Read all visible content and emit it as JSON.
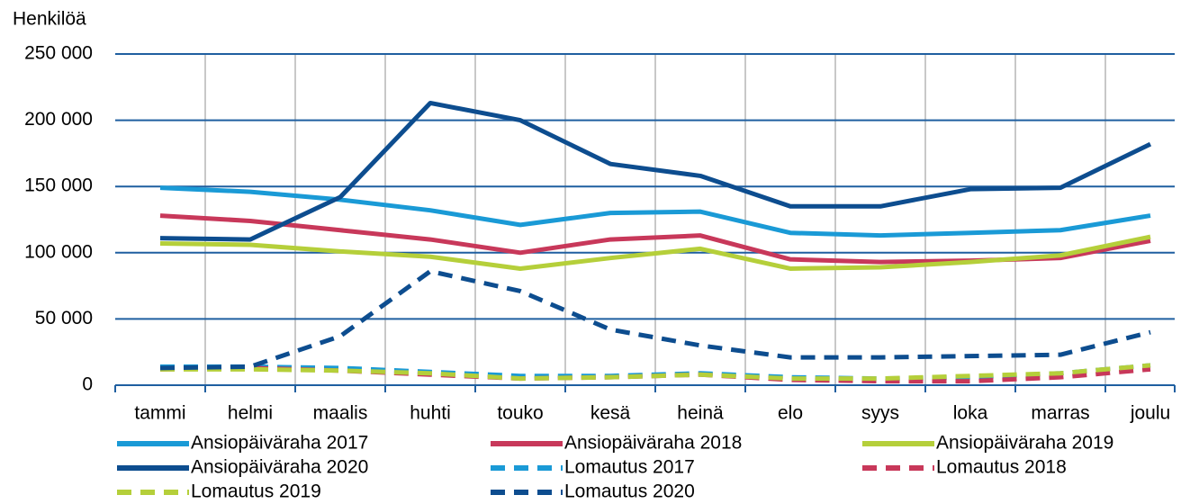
{
  "chart_data": {
    "type": "line",
    "y_label": "Henkilöä",
    "categories": [
      "tammi",
      "helmi",
      "maalis",
      "huhti",
      "touko",
      "kesä",
      "heinä",
      "elo",
      "syys",
      "loka",
      "marras",
      "joulu"
    ],
    "ylim": [
      0,
      250000
    ],
    "yticks": [
      {
        "value": 0,
        "label": "0"
      },
      {
        "value": 50000,
        "label": "50 000"
      },
      {
        "value": 100000,
        "label": "100 000"
      },
      {
        "value": 150000,
        "label": "150 000"
      },
      {
        "value": 200000,
        "label": "200 000"
      },
      {
        "value": 250000,
        "label": "250 000"
      }
    ],
    "grid": true,
    "series": [
      {
        "name": "Ansiopäiväraha 2017",
        "color": "#1a9ad6",
        "dashed": false,
        "values": [
          149000,
          146000,
          140000,
          132000,
          121000,
          130000,
          131000,
          115000,
          113000,
          115000,
          117000,
          128000
        ]
      },
      {
        "name": "Ansiopäiväraha 2018",
        "color": "#c8385a",
        "dashed": false,
        "values": [
          128000,
          124000,
          117000,
          110000,
          100000,
          110000,
          113000,
          95000,
          93000,
          94000,
          96000,
          109000
        ]
      },
      {
        "name": "Ansiopäiväraha 2019",
        "color": "#b5cf3a",
        "dashed": false,
        "values": [
          107000,
          106000,
          101000,
          97000,
          88000,
          96000,
          103000,
          88000,
          89000,
          93000,
          98000,
          112000
        ]
      },
      {
        "name": "Ansiopäiväraha 2020",
        "color": "#0d4d8f",
        "dashed": false,
        "values": [
          111000,
          110000,
          142000,
          213000,
          200000,
          167000,
          158000,
          135000,
          135000,
          148000,
          149000,
          182000
        ]
      },
      {
        "name": "Lomautus 2017",
        "color": "#1a9ad6",
        "dashed": true,
        "values": [
          14000,
          14000,
          13000,
          10000,
          7000,
          7000,
          9000,
          6000,
          5000,
          6000,
          9000,
          15000
        ]
      },
      {
        "name": "Lomautus 2018",
        "color": "#c8385a",
        "dashed": true,
        "values": [
          12000,
          13000,
          11000,
          8000,
          5000,
          6000,
          8000,
          4000,
          3000,
          3000,
          6000,
          12000
        ]
      },
      {
        "name": "Lomautus 2019",
        "color": "#b5cf3a",
        "dashed": true,
        "values": [
          12000,
          12000,
          11000,
          9000,
          5000,
          6000,
          8000,
          5000,
          5000,
          7000,
          9000,
          15000
        ]
      },
      {
        "name": "Lomautus 2020",
        "color": "#0d4d8f",
        "dashed": true,
        "values": [
          13000,
          14000,
          37000,
          86000,
          71000,
          42000,
          30000,
          21000,
          21000,
          22000,
          23000,
          40000
        ]
      }
    ]
  }
}
